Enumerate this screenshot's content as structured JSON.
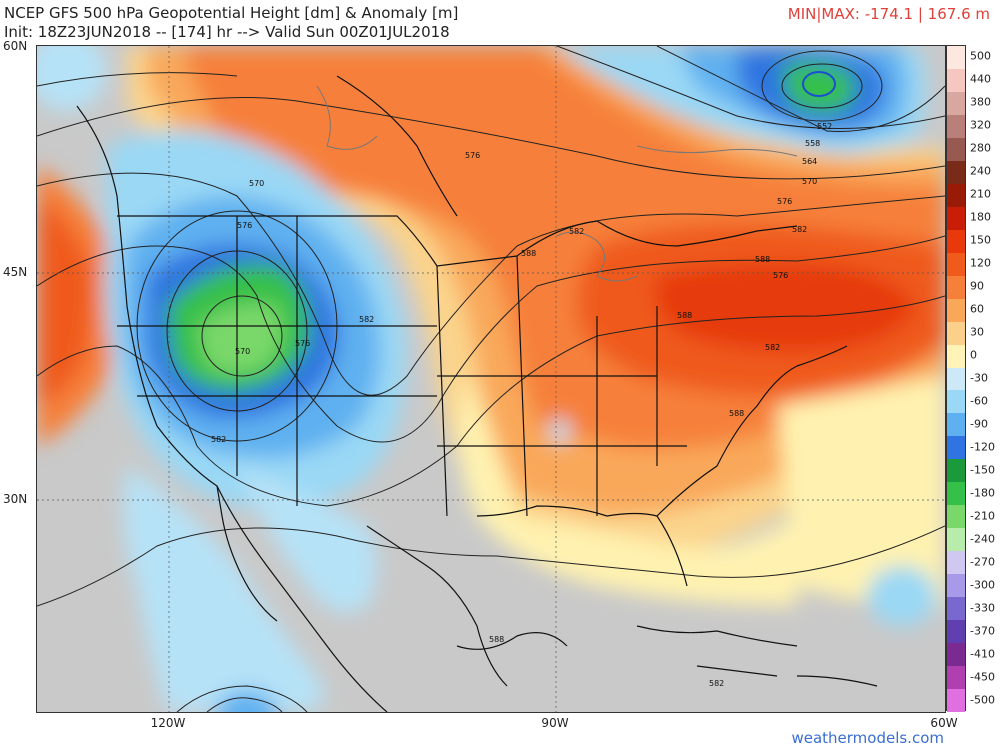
{
  "header": {
    "title": "NCEP GFS 500 hPa Geopotential Height [dm] & Anomaly [m]",
    "init_line": "Init: 18Z23JUN2018 -- [174] hr --> Valid Sun 00Z01JUL2018",
    "minmax": "MIN|MAX: -174.1 | 167.6 m"
  },
  "axes": {
    "lat_labels": [
      "60N",
      "45N",
      "30N"
    ],
    "lon_labels": [
      "120W",
      "90W",
      "60W"
    ]
  },
  "contour_labels": [
    "552",
    "558",
    "564",
    "570",
    "576",
    "582",
    "588",
    "570",
    "576",
    "582",
    "576",
    "588",
    "582",
    "588",
    "582",
    "588",
    "588",
    "570",
    "576",
    "582",
    "576",
    "582"
  ],
  "colorbar": {
    "ticks": [
      "500",
      "440",
      "380",
      "320",
      "280",
      "240",
      "210",
      "180",
      "150",
      "120",
      "90",
      "60",
      "30",
      "0",
      "-30",
      "-60",
      "-90",
      "-120",
      "-150",
      "-180",
      "-210",
      "-240",
      "-270",
      "-300",
      "-330",
      "-370",
      "-410",
      "-450",
      "-500"
    ],
    "colors": [
      "#fde8e0",
      "#f6c6c0",
      "#d8a8a0",
      "#b88078",
      "#985a50",
      "#7a2a18",
      "#9a1a08",
      "#c81e08",
      "#e8380c",
      "#f05a1a",
      "#f6803a",
      "#f9a85a",
      "#fbd08a",
      "#fff3b8",
      "#cde9f8",
      "#9ad8f5",
      "#5fb0f0",
      "#2f74e0",
      "#1a9a3a",
      "#35c04a",
      "#7ad86a",
      "#b8ecaa",
      "#d0c8f0",
      "#a89ae8",
      "#7868d0",
      "#6040b0",
      "#7a2a90",
      "#b040b0",
      "#e070e0"
    ]
  },
  "credit": "weathermodels.com"
}
